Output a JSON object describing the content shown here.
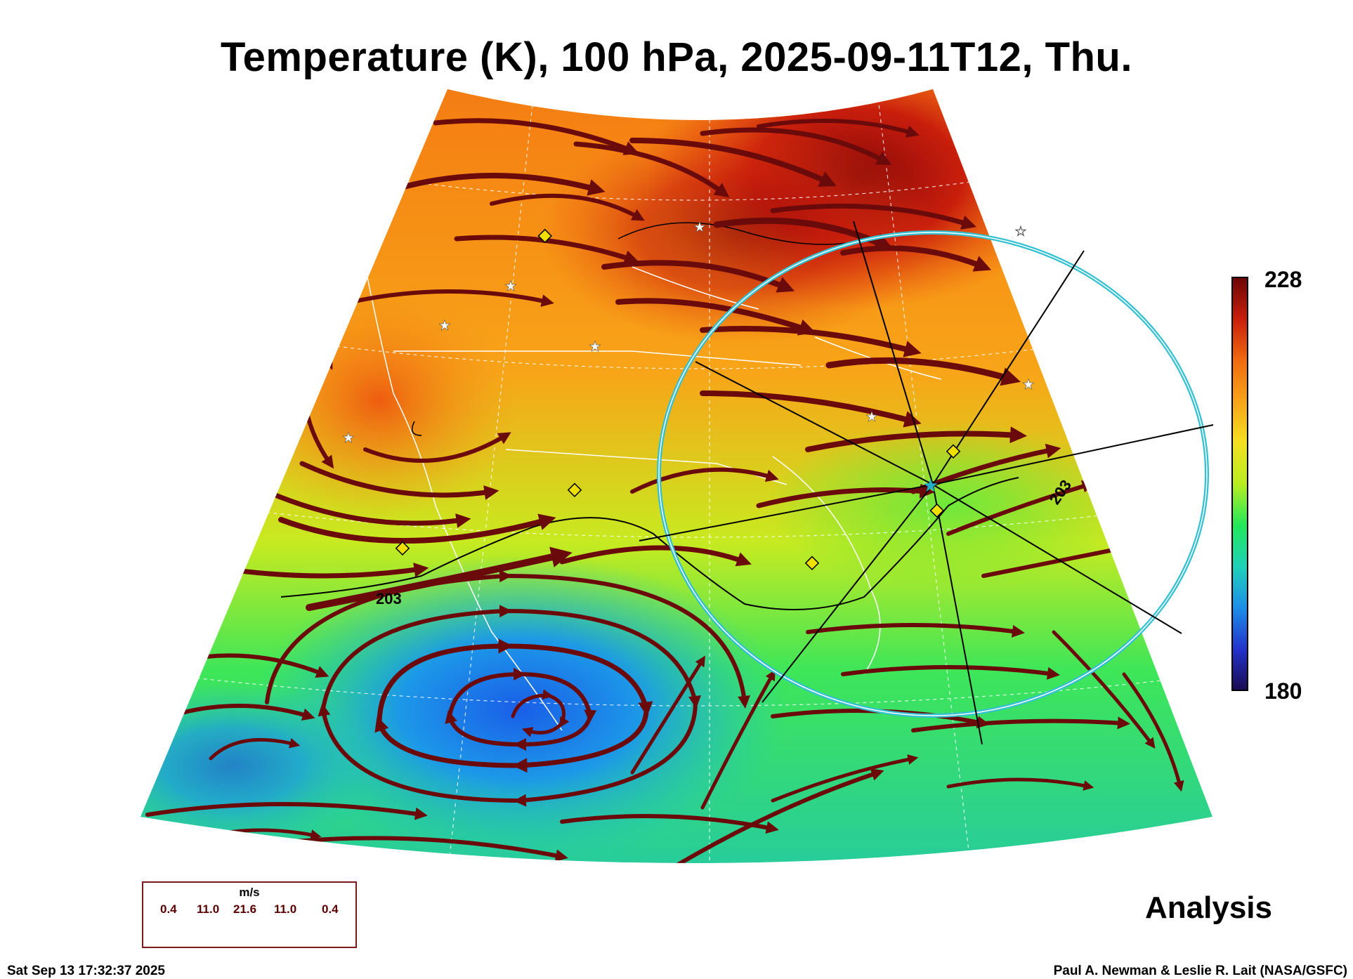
{
  "title": "Temperature (K), 100 hPa, 2025-09-11T12, Thu.",
  "colorbar": {
    "max_label": "228",
    "min_label": "180",
    "colors": [
      "#1a0a50",
      "#2233cc",
      "#1d8ee8",
      "#1ed2b8",
      "#22e85a",
      "#b8ee20",
      "#f4e020",
      "#f7a418",
      "#f06a10",
      "#c81e0c",
      "#6a0606"
    ]
  },
  "contour_labels": [
    "203",
    "203"
  ],
  "legend": {
    "unit": "m/s",
    "values": [
      "0.4",
      "11.0",
      "21.6",
      "11.0",
      "0.4"
    ]
  },
  "stamp": "Analysis",
  "timestamp": "Sat Sep 13 17:32:37 2025",
  "credit": "Paul A. Newman & Leslie R. Lait (NASA/GSFC)",
  "colors": {
    "streamline": "#6b0a0a",
    "range_ring": "#33c0d0",
    "station_marker": "#f0e000"
  }
}
